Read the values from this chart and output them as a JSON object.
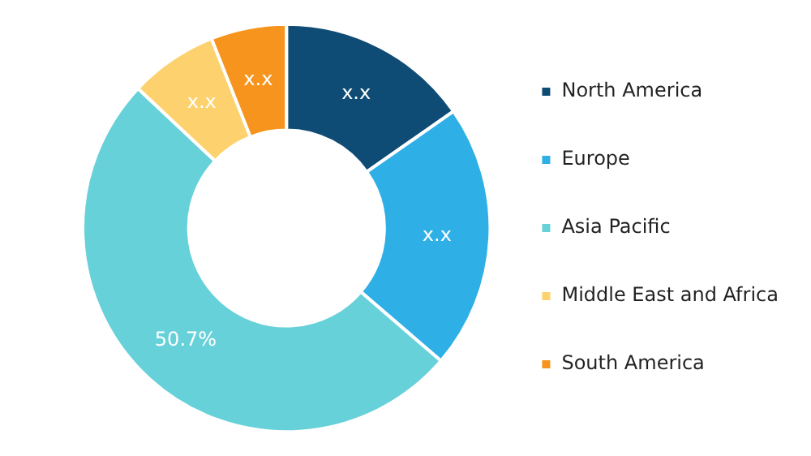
{
  "chart_data": {
    "type": "donut",
    "categories": [
      "North America",
      "Europe",
      "Asia Pacific",
      "Middle East and Africa",
      "South America"
    ],
    "values": [
      15.3,
      21,
      50.7,
      7,
      6
    ],
    "colors": [
      "#0f4c75",
      "#2eafe6",
      "#67d1d9",
      "#fdd26e",
      "#f7941d"
    ],
    "value_labels": [
      "x.x",
      "x.x",
      "50.7%",
      "x.x",
      "x.x"
    ],
    "legend": "right"
  }
}
